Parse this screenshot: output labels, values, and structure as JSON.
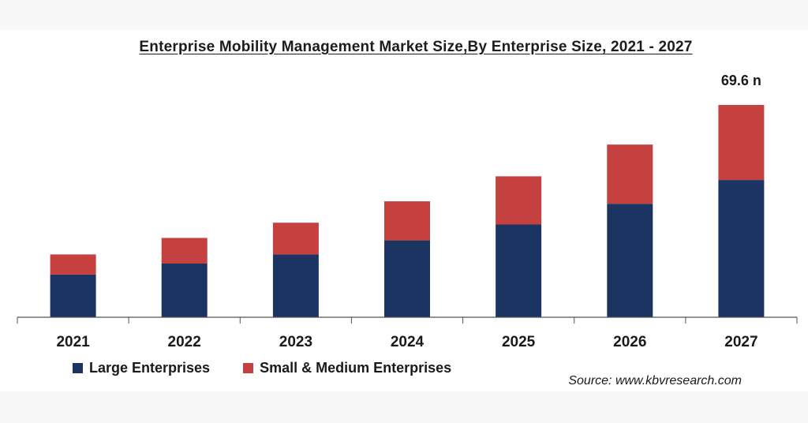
{
  "chart_data": {
    "type": "bar",
    "stacked": true,
    "title": "Enterprise Mobility Management Market Size,By Enterprise Size, 2021 - 2027",
    "categories": [
      "2021",
      "2022",
      "2023",
      "2024",
      "2025",
      "2026",
      "2027"
    ],
    "series": [
      {
        "name": "Large Enterprises",
        "color": "#1b3461",
        "values": [
          14.0,
          17.6,
          20.6,
          25.2,
          30.4,
          37.2,
          45.0
        ]
      },
      {
        "name": "Small & Medium Enterprises",
        "color": "#c5413f",
        "values": [
          6.6,
          8.4,
          10.4,
          12.8,
          15.8,
          19.4,
          24.6
        ]
      }
    ],
    "annotations": [
      {
        "category": "2027",
        "text": "69.6 n"
      }
    ],
    "ylim": [
      0,
      69.6
    ],
    "xlabel": "",
    "ylabel": "",
    "grid": false,
    "legend_position": "bottom-left"
  },
  "source": "Source: www.kbvresearch.com"
}
